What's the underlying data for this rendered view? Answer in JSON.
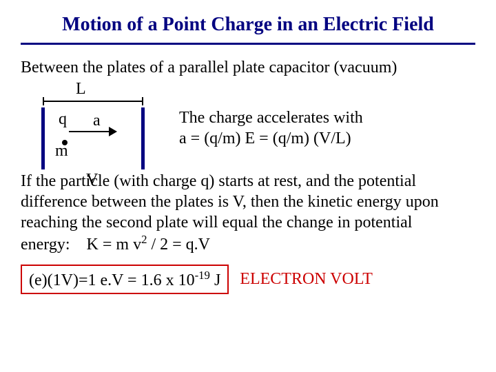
{
  "title": "Motion of a Point Charge in an Electric Field",
  "intro": "Between the plates of a parallel plate capacitor (vacuum)",
  "diagram": {
    "L": "L",
    "q": "q",
    "m": "m",
    "a": "a",
    "V": "V"
  },
  "explain_line1": "The charge accelerates with",
  "explain_line2": "a = (q/m) E = (q/m) (V/L)",
  "para_part1": "If the particle (with charge q) starts at rest, and the potential difference between the plates is V, then the kinetic energy upon reaching the second plate will equal the change in potential energy:    K = m v",
  "para_sup": "2",
  "para_part2": " / 2 = q.V",
  "boxed_part1": "(e)(1V)=1 e.V = 1.6 x 10",
  "boxed_sup": "-19",
  "boxed_part2": " J",
  "ev": "ELECTRON VOLT",
  "colors": {
    "title": "#000080",
    "plate": "#000080",
    "box_border": "#cc0000",
    "ev_text": "#cc0000",
    "text": "#000000",
    "background": "#ffffff"
  },
  "fonts": {
    "family": "Times New Roman",
    "title_size": 28,
    "body_size": 24
  }
}
